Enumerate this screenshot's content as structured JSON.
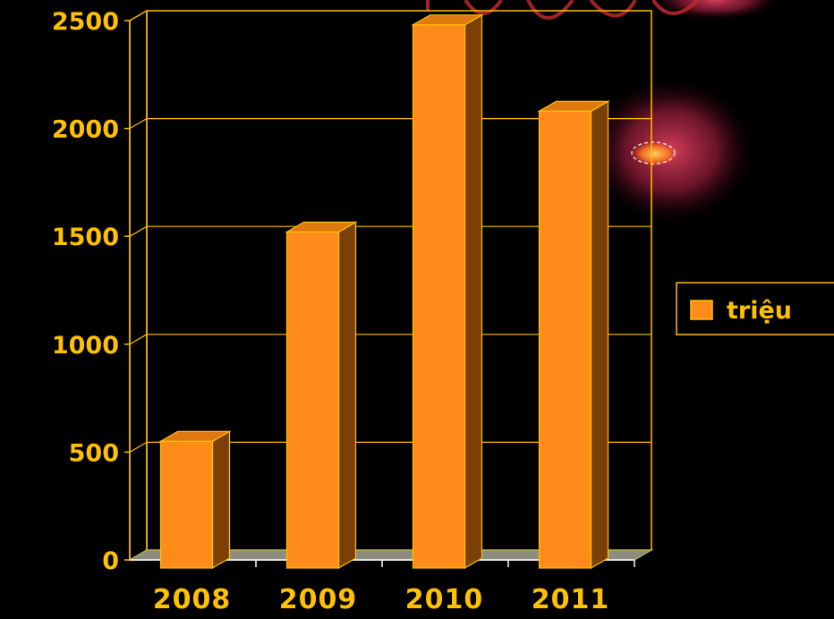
{
  "chart_data": {
    "type": "bar",
    "categories": [
      "2008",
      "2009",
      "2010",
      "2011"
    ],
    "series": [
      {
        "name": "triệu",
        "values": [
          550,
          1520,
          2480,
          2080
        ]
      }
    ],
    "ylim": [
      0,
      2500
    ],
    "y_ticks": [
      "0",
      "500",
      "1000",
      "1500",
      "2000",
      "2500"
    ],
    "grid": true,
    "legend": "right",
    "style": "3d-column"
  },
  "colors": {
    "background": "#000000",
    "bar_front": "#FF8C1A",
    "bar_top": "#E07810",
    "bar_side": "#7A4008",
    "bar_outline": "#FFC000",
    "floor": "#8C8C80",
    "axis_text": "#FFC000",
    "gridline": "#FFC000"
  }
}
